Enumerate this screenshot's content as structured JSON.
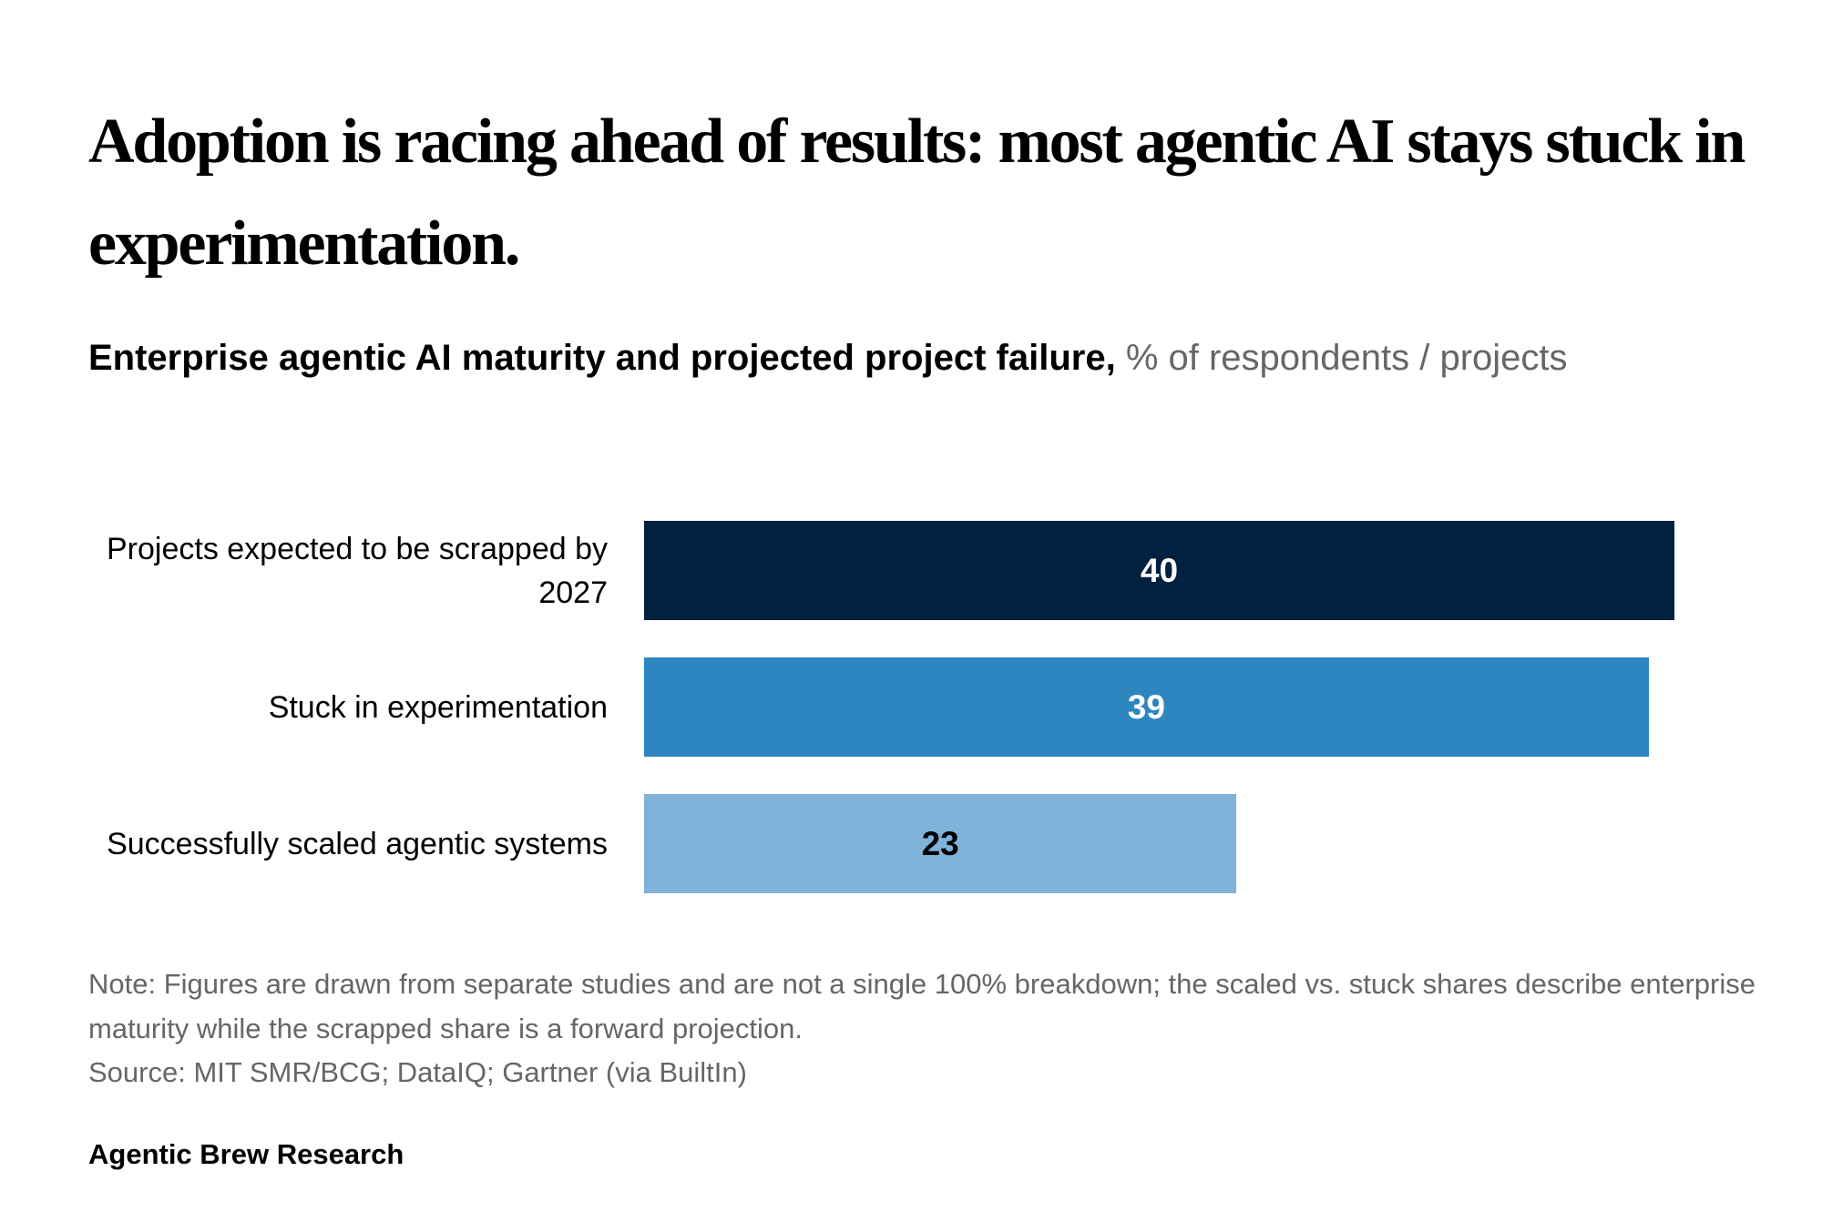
{
  "title": "Adoption is racing ahead of results: most agentic AI stays stuck in experimentation.",
  "chart_data": {
    "type": "bar",
    "orientation": "horizontal",
    "subtitle": "Enterprise agentic AI maturity and projected project failure,",
    "subtitle_units": "% of respondents / projects",
    "categories": [
      "Projects expected to be scrapped by 2027",
      "Stuck in experimentation",
      "Successfully scaled agentic systems"
    ],
    "values": [
      40,
      39,
      23
    ],
    "colors": [
      "#02203f",
      "#2e86c1",
      "#7fb3d9"
    ]
  },
  "note": "Note: Figures are drawn from separate studies and are not a single 100% breakdown; the scaled vs. stuck shares describe enterprise maturity while the scrapped share is a forward projection.",
  "source": "Source: MIT SMR/BCG; DataIQ; Gartner (via BuiltIn)",
  "brand": "Agentic Brew Research"
}
